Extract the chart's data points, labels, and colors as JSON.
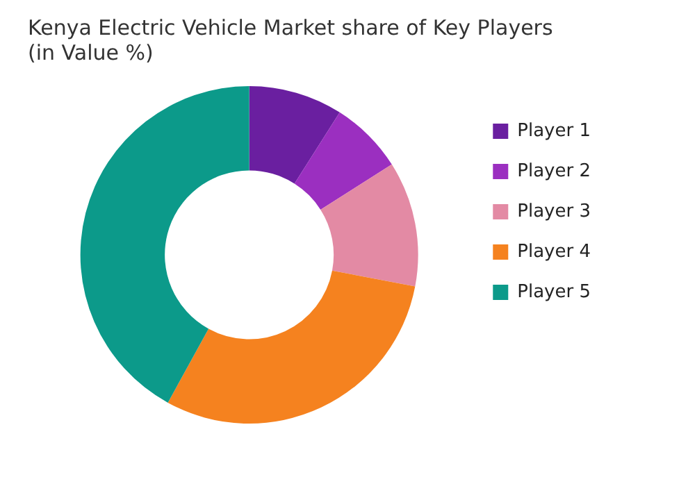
{
  "chart_data": {
    "type": "donut",
    "title": [
      "Kenya Electric Vehicle Market share of Key Players",
      "(in Value %)"
    ],
    "categories": [
      "Player 1",
      "Player 2",
      "Player 3",
      "Player 4",
      "Player 5"
    ],
    "values": [
      9,
      7,
      12,
      30,
      42
    ],
    "colors": [
      "#6a1fa0",
      "#9b2fc0",
      "#e38aa4",
      "#f5821f",
      "#0c9a8a"
    ],
    "legend": "right"
  }
}
